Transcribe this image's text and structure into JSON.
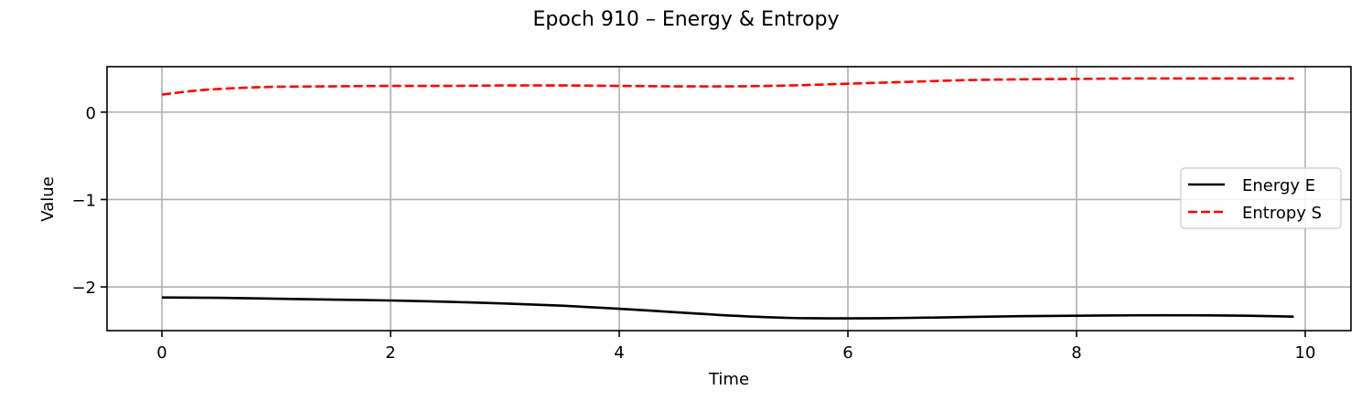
{
  "chart_data": {
    "type": "line",
    "title": "Epoch 910 – Energy & Entropy",
    "xlabel": "Time",
    "ylabel": "Value",
    "xlim": [
      -0.48,
      10.4
    ],
    "ylim": [
      -2.5,
      0.52
    ],
    "xticks": [
      0,
      2,
      4,
      6,
      8,
      10
    ],
    "xtick_labels": [
      "0",
      "2",
      "4",
      "6",
      "8",
      "10"
    ],
    "yticks": [
      0,
      -1,
      -2
    ],
    "ytick_labels": [
      "0",
      "−1",
      "−2"
    ],
    "grid": true,
    "legend_position": "center-right",
    "series": [
      {
        "name": "Energy E",
        "color": "#000000",
        "style": "solid",
        "x": [
          0,
          0.5,
          1,
          1.5,
          2,
          2.5,
          3,
          3.5,
          4,
          4.5,
          5,
          5.5,
          6,
          6.5,
          7,
          7.5,
          8,
          8.5,
          9,
          9.5,
          9.9
        ],
        "y": [
          -2.12,
          -2.125,
          -2.135,
          -2.145,
          -2.155,
          -2.17,
          -2.19,
          -2.215,
          -2.25,
          -2.29,
          -2.33,
          -2.355,
          -2.36,
          -2.355,
          -2.345,
          -2.335,
          -2.33,
          -2.325,
          -2.325,
          -2.33,
          -2.34
        ]
      },
      {
        "name": "Entropy S",
        "color": "#ff0000",
        "style": "dashed",
        "x": [
          0,
          0.25,
          0.5,
          0.75,
          1,
          1.5,
          2,
          2.5,
          3,
          3.5,
          4,
          4.5,
          5,
          5.5,
          6,
          6.5,
          7,
          7.5,
          8,
          8.5,
          9,
          9.5,
          9.9
        ],
        "y": [
          0.2,
          0.24,
          0.265,
          0.28,
          0.29,
          0.295,
          0.3,
          0.3,
          0.305,
          0.305,
          0.3,
          0.295,
          0.295,
          0.305,
          0.325,
          0.345,
          0.365,
          0.375,
          0.38,
          0.385,
          0.385,
          0.385,
          0.385
        ]
      }
    ]
  }
}
